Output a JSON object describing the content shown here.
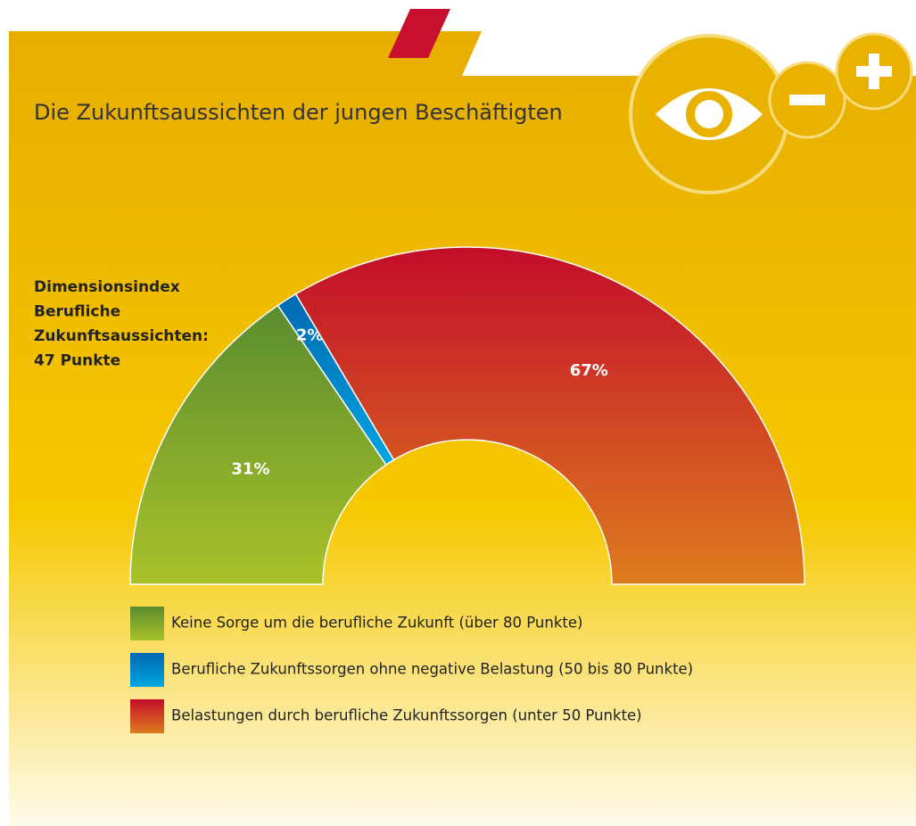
{
  "chart_data": {
    "type": "pie",
    "title": "Die Zukunftsaussichten der jungen Beschäftigten",
    "annotation": [
      "Dimensionsindex",
      "Berufliche",
      "Zukunftsaussichten:",
      "47 Punkte"
    ],
    "categories": [
      "Keine Sorge um die berufliche Zukunft (über 80 Punkte)",
      "Berufliche Zukunftssorgen ohne negative Belastung (50 bis 80 Punkte)",
      "Belastungen durch berufliche Zukunftssorgen (unter 50 Punkte)"
    ],
    "values": [
      31,
      2,
      67
    ],
    "value_labels": [
      "31%",
      "2%",
      "67%"
    ],
    "colors": [
      [
        "#5a8c2f",
        "#a9c229"
      ],
      [
        "#0068b0",
        "#00a6e2"
      ],
      [
        "#c30d2a",
        "#de7c1e"
      ]
    ],
    "legend": "bottom"
  }
}
